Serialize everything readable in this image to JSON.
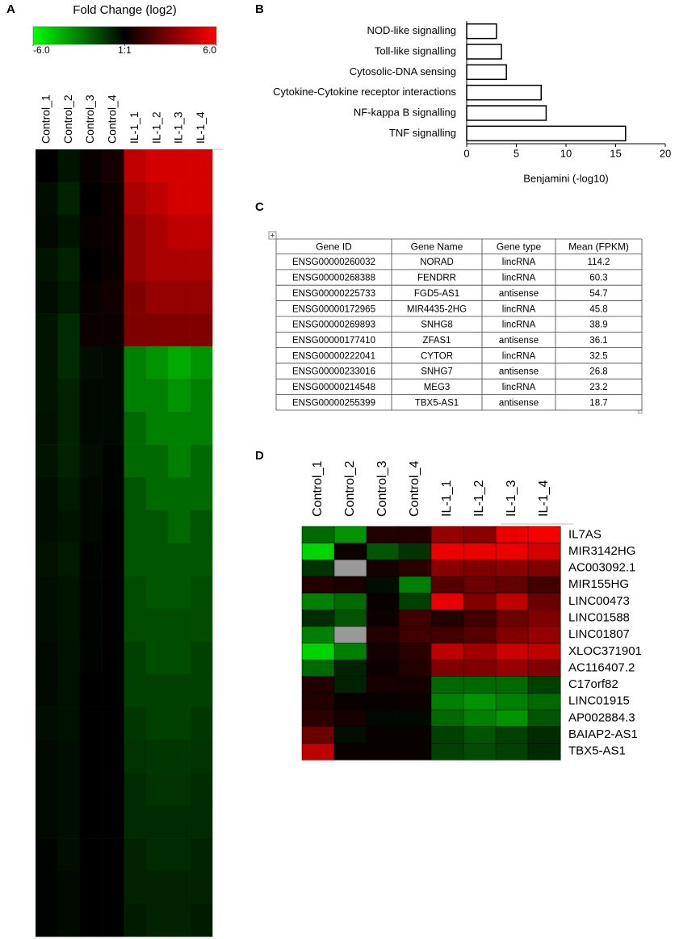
{
  "chart_data": [
    {
      "panel": "A",
      "type": "heatmap",
      "title": "Fold Change (log2)",
      "columns": [
        "Control_1",
        "Control_2",
        "Control_3",
        "Control_4",
        "IL-1_1",
        "IL-1_2",
        "IL-1_3",
        "IL-1_4"
      ],
      "clim": [
        -6,
        6
      ],
      "colors": [
        "#00ff00",
        "#000000",
        "#ff0000"
      ],
      "colorbar_ticks": [
        {
          "value": -6,
          "label": "-6.0"
        },
        {
          "value": 0,
          "label": "1:1"
        },
        {
          "value": 6,
          "label": "6.0"
        }
      ],
      "values": [
        [
          0,
          -0.5,
          0.2,
          0.5,
          4.5,
          5,
          5,
          5
        ],
        [
          -0.3,
          -0.8,
          0,
          0.3,
          4,
          4.5,
          5,
          5
        ],
        [
          -0.2,
          -0.5,
          0.2,
          0.3,
          3.5,
          4,
          4.5,
          4.5
        ],
        [
          -0.5,
          -0.8,
          0,
          0.2,
          3.5,
          4,
          4,
          4
        ],
        [
          -0.3,
          -0.6,
          0.2,
          0.4,
          3,
          3.5,
          3.5,
          3.5
        ],
        [
          -0.5,
          -1,
          0.3,
          0.3,
          3,
          3,
          3,
          3
        ],
        [
          -0.5,
          -1,
          -0.3,
          -0.2,
          -3,
          -3.5,
          -4,
          -3.5
        ],
        [
          -0.5,
          -0.8,
          -0.2,
          -0.2,
          -3,
          -3,
          -3.5,
          -3
        ],
        [
          -0.4,
          -0.8,
          -0.2,
          -0.2,
          -2.5,
          -3,
          -3,
          -3
        ],
        [
          -0.5,
          -0.8,
          -0.3,
          -0.1,
          -2.5,
          -2.5,
          -3,
          -2.5
        ],
        [
          -0.3,
          -0.6,
          -0.2,
          -0.1,
          -2,
          -2.5,
          -2.5,
          -2.5
        ],
        [
          -0.3,
          -0.5,
          -0.2,
          0,
          -2,
          -2,
          -2.5,
          -2
        ],
        [
          -0.4,
          -0.6,
          -0.1,
          0,
          -2,
          -2,
          -2,
          -2
        ],
        [
          -0.3,
          -0.5,
          -0.1,
          0,
          -1.8,
          -2,
          -2,
          -1.8
        ],
        [
          -0.3,
          -0.5,
          -0.1,
          0,
          -1.8,
          -1.8,
          -1.8,
          -1.8
        ],
        [
          -0.2,
          -0.4,
          -0.1,
          0,
          -1.5,
          -1.8,
          -1.8,
          -1.5
        ],
        [
          -0.2,
          -0.4,
          0,
          0,
          -1.5,
          -1.5,
          -1.5,
          -1.5
        ],
        [
          -0.3,
          -0.4,
          0,
          0,
          -1.3,
          -1.5,
          -1.5,
          -1.3
        ],
        [
          -0.2,
          -0.3,
          0,
          0,
          -1.2,
          -1.3,
          -1.3,
          -1.2
        ],
        [
          -0.2,
          -0.3,
          0,
          0,
          -1,
          -1.2,
          -1.2,
          -1
        ],
        [
          -0.2,
          -0.3,
          0,
          0,
          -1,
          -1,
          -1,
          -1
        ],
        [
          -0.1,
          -0.3,
          0,
          0,
          -0.8,
          -1,
          -1,
          -0.8
        ],
        [
          -0.1,
          -0.2,
          0,
          0,
          -0.8,
          -0.8,
          -0.8,
          -0.8
        ],
        [
          -0.1,
          -0.2,
          0,
          0,
          -0.6,
          -0.8,
          -0.8,
          -0.6
        ]
      ]
    },
    {
      "panel": "B",
      "type": "bar",
      "orientation": "horizontal",
      "categories": [
        "NOD-like signalling",
        "Toll-like signalling",
        "Cytosolic-DNA sensing",
        "Cytokine-Cytokine receptor interactions",
        "NF-kappa B signalling",
        "TNF signalling"
      ],
      "values": [
        3,
        3.5,
        4,
        7.5,
        8,
        16
      ],
      "xlim": [
        0,
        20
      ],
      "xticks": [
        0,
        5,
        10,
        15,
        20
      ],
      "xlabel": "Benjamini (-log10)",
      "color": "#ffffff",
      "edge_color": "#000000"
    },
    {
      "panel": "D",
      "type": "heatmap",
      "columns": [
        "Control_1",
        "Control_2",
        "Control_3",
        "Control_4",
        "IL-1_1",
        "IL-1_2",
        "IL-1_3",
        "IL-1_4"
      ],
      "rows": [
        "IL7AS",
        "MIR3142HG",
        "AC003092.1",
        "MIR155HG",
        "LINC00473",
        "LINC01588",
        "LINC01807",
        "XLOC371901",
        "AC116407.2",
        "C17orf82",
        "LINC01915",
        "AP002884.3",
        "BAIAP2-AS1",
        "TBX5-AS1"
      ],
      "clim": [
        -6,
        6
      ],
      "colors": [
        "#00ff00",
        "#000000",
        "#ff0000"
      ],
      "missing_color": "#999999",
      "values": [
        [
          -2.5,
          -3.5,
          0.8,
          0.8,
          3.5,
          3.2,
          5.5,
          5.8
        ],
        [
          -5,
          0.3,
          -2,
          -1.2,
          5.5,
          5.5,
          5.5,
          5
        ],
        [
          -1.2,
          null,
          0.5,
          1,
          3.2,
          3,
          3.2,
          3
        ],
        [
          0.8,
          0.6,
          -0.3,
          -3,
          2,
          2.5,
          2.3,
          1.5
        ],
        [
          -3,
          -2.5,
          0.2,
          -1.5,
          5.5,
          3,
          4.5,
          2.5
        ],
        [
          -1,
          -2,
          0.3,
          1.5,
          0.8,
          1.5,
          2.5,
          3
        ],
        [
          -3,
          null,
          0.8,
          1.5,
          1.5,
          2,
          3,
          3.5
        ],
        [
          -5,
          -3,
          0.5,
          1,
          4.5,
          3.8,
          4.8,
          4.5
        ],
        [
          -2.5,
          -0.8,
          0.3,
          0.8,
          3,
          3,
          3.5,
          3
        ],
        [
          0.8,
          -0.8,
          0.5,
          0.5,
          -2.5,
          -2.5,
          -2.5,
          -1.5
        ],
        [
          0.8,
          0.2,
          0.2,
          0.3,
          -3,
          -3.5,
          -3,
          -2.5
        ],
        [
          1,
          0.5,
          -0.2,
          -0.2,
          -2.5,
          -3,
          -3.5,
          -2
        ],
        [
          2.5,
          -0.3,
          0.2,
          0.2,
          -1.5,
          -2,
          -1.5,
          -1
        ],
        [
          4.5,
          0.2,
          0.2,
          0.2,
          -1.5,
          -1.8,
          -1.5,
          -1
        ]
      ]
    }
  ],
  "table": {
    "panel": "C",
    "header": [
      "Gene ID",
      "Gene Name",
      "Gene type",
      "Mean (FPKM)"
    ],
    "rows": [
      [
        "ENSG00000260032",
        "NORAD",
        "lincRNA",
        "114.2"
      ],
      [
        "ENSG00000268388",
        "FENDRR",
        "lincRNA",
        "60.3"
      ],
      [
        "ENSG00000225733",
        "FGD5-AS1",
        "antisense",
        "54.7"
      ],
      [
        "ENSG00000172965",
        "MIR4435-2HG",
        "lincRNA",
        "45.8"
      ],
      [
        "ENSG00000269893",
        "SNHG8",
        "lincRNA",
        "38.9"
      ],
      [
        "ENSG00000177410",
        "ZFAS1",
        "antisense",
        "36.1"
      ],
      [
        "ENSG00000222041",
        "CYTOR",
        "lincRNA",
        "32.5"
      ],
      [
        "ENSG00000233016",
        "SNHG7",
        "antisense",
        "26.8"
      ],
      [
        "ENSG00000214548",
        "MEG3",
        "lincRNA",
        "23.2"
      ],
      [
        "ENSG00000255399",
        "TBX5-AS1",
        "antisense",
        "18.7"
      ]
    ]
  }
}
